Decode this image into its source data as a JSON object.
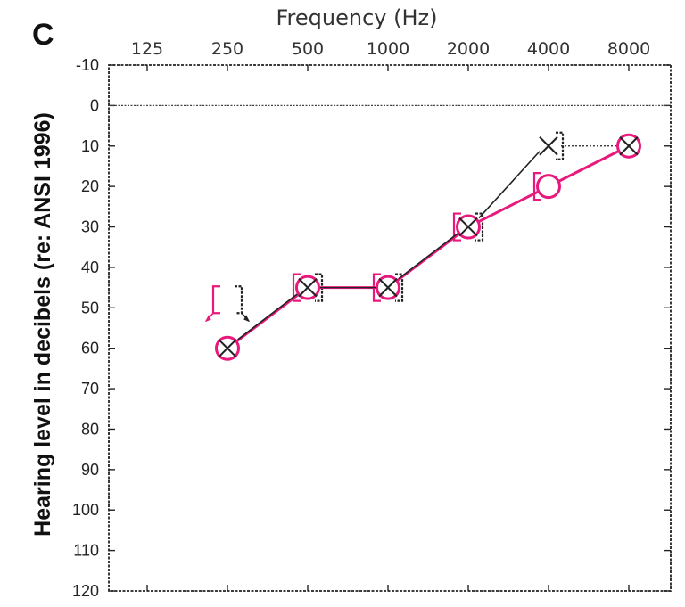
{
  "chart_data": {
    "type": "line",
    "panel_label": "C",
    "title": "",
    "xlabel": "Frequency (Hz)",
    "ylabel": "Hearing level in decibels (re: ANSI 1996)",
    "x_scale": "log2",
    "x_ticks": [
      "125",
      "250",
      "500",
      "1000",
      "2000",
      "4000",
      "8000"
    ],
    "y_ticks": [
      "-10",
      "0",
      "10",
      "20",
      "30",
      "40",
      "50",
      "60",
      "70",
      "80",
      "90",
      "100",
      "110",
      "120"
    ],
    "ylim": [
      -10,
      120
    ],
    "y_inverted": true,
    "reference_line_y": 0,
    "grid": false,
    "series": [
      {
        "color": "#e8187c",
        "marker": "circle",
        "connected": true,
        "points": [
          {
            "x": 250,
            "y": 60
          },
          {
            "x": 500,
            "y": 45
          },
          {
            "x": 1000,
            "y": 45
          },
          {
            "x": 2000,
            "y": 30
          },
          {
            "x": 4000,
            "y": 20
          },
          {
            "x": 8000,
            "y": 10
          }
        ]
      },
      {
        "color": "#222222",
        "marker": "x",
        "connected": false,
        "points": [
          {
            "x": 250,
            "y": 60
          },
          {
            "x": 500,
            "y": 45
          },
          {
            "x": 1000,
            "y": 45
          },
          {
            "x": 2000,
            "y": 30
          },
          {
            "x": 4000,
            "y": 10
          },
          {
            "x": 8000,
            "y": 10
          }
        ]
      }
    ],
    "bone_conduction": [
      {
        "side": "right",
        "color": "#e8187c",
        "points": [
          {
            "x": 250,
            "y": 48,
            "arrow": true
          },
          {
            "x": 500,
            "y": 45
          },
          {
            "x": 1000,
            "y": 45
          },
          {
            "x": 2000,
            "y": 30
          },
          {
            "x": 4000,
            "y": 20
          }
        ]
      },
      {
        "side": "left",
        "color": "#222222",
        "points": [
          {
            "x": 250,
            "y": 48,
            "arrow": true
          },
          {
            "x": 500,
            "y": 45
          },
          {
            "x": 1000,
            "y": 45
          },
          {
            "x": 2000,
            "y": 30
          },
          {
            "x": 4000,
            "y": 10
          }
        ]
      }
    ],
    "colors": {
      "right_ear": "#e8187c",
      "left_ear": "#222222"
    }
  }
}
